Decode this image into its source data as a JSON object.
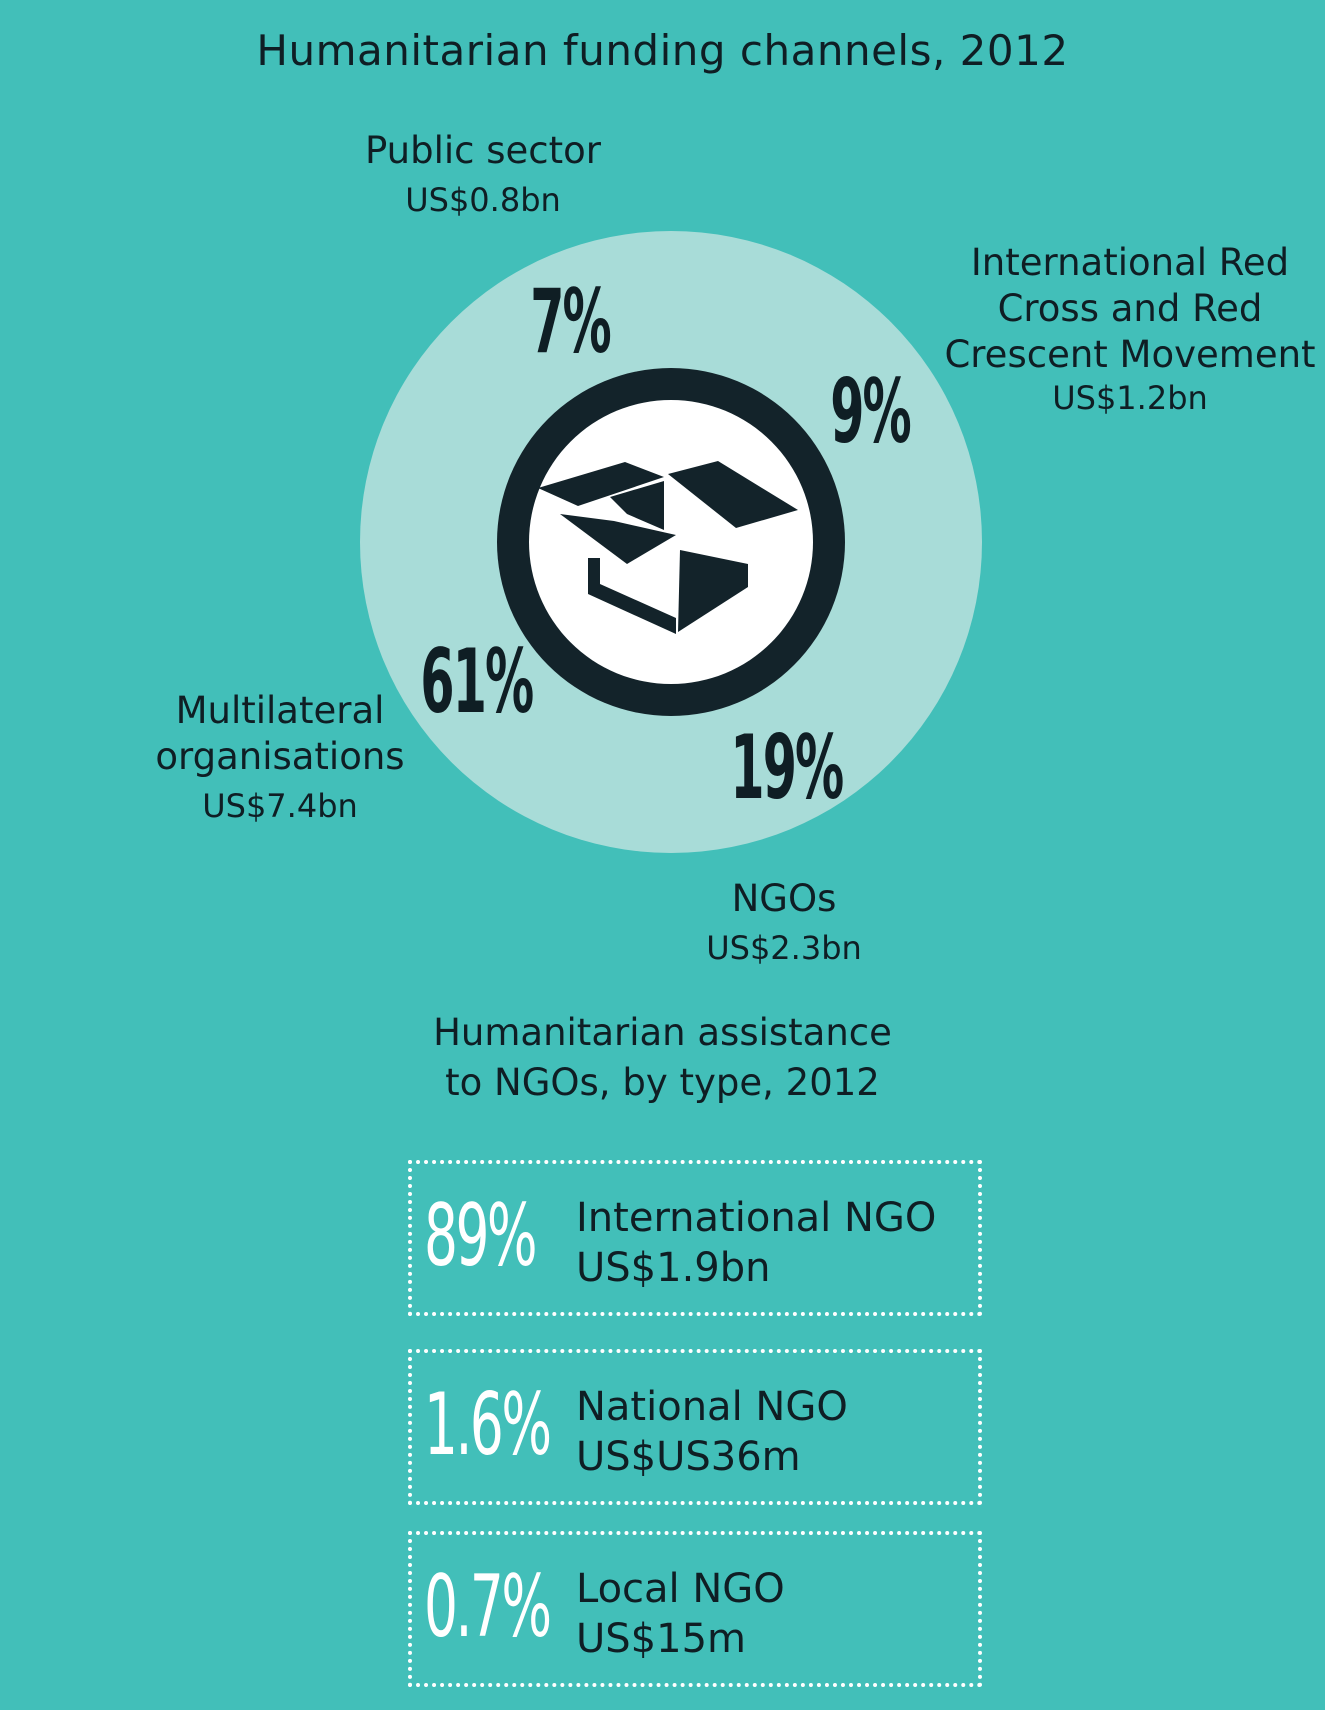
{
  "title": "Humanitarian funding channels, 2012",
  "segments": [
    {
      "name_lines": [
        "Public sector"
      ],
      "value": "US$0.8bn",
      "percent_label": "7%"
    },
    {
      "name_lines": [
        "International Red",
        "Cross and Red",
        "Crescent Movement"
      ],
      "value": "US$1.2bn",
      "percent_label": "9%"
    },
    {
      "name_lines": [
        "NGOs"
      ],
      "value": "US$2.3bn",
      "percent_label": "19%"
    },
    {
      "name_lines": [
        "Multilateral",
        "organisations"
      ],
      "value": "US$7.4bn",
      "percent_label": "61%"
    }
  ],
  "center_icon": "open-box-icon",
  "subtitle_lines": [
    "Humanitarian assistance",
    "to NGOs, by type, 2012"
  ],
  "ngo_types": [
    {
      "percent_label": "89%",
      "name": "International NGO",
      "value": "US$1.9bn"
    },
    {
      "percent_label": "1.6%",
      "name": "National NGO",
      "value": "US$US36m"
    },
    {
      "percent_label": "0.7%",
      "name": "Local NGO",
      "value": "US$15m"
    }
  ],
  "colors": {
    "background": "#42bfb9",
    "outer_circle": "#a8dcd8",
    "ring": "#13232a",
    "inner_circle": "#ffffff",
    "text": "#0f1e24",
    "card_border": "#ffffff"
  },
  "chart_data": {
    "type": "pie",
    "title": "Humanitarian funding channels, 2012",
    "categories": [
      "Public sector",
      "International Red Cross and Red Crescent Movement",
      "NGOs",
      "Multilateral organisations"
    ],
    "values": [
      0.8,
      1.2,
      2.3,
      7.4
    ],
    "value_labels": [
      "US$0.8bn",
      "US$1.2bn",
      "US$2.3bn",
      "US$7.4bn"
    ],
    "percentages": [
      7,
      9,
      19,
      61
    ],
    "units": "US$ bn"
  }
}
